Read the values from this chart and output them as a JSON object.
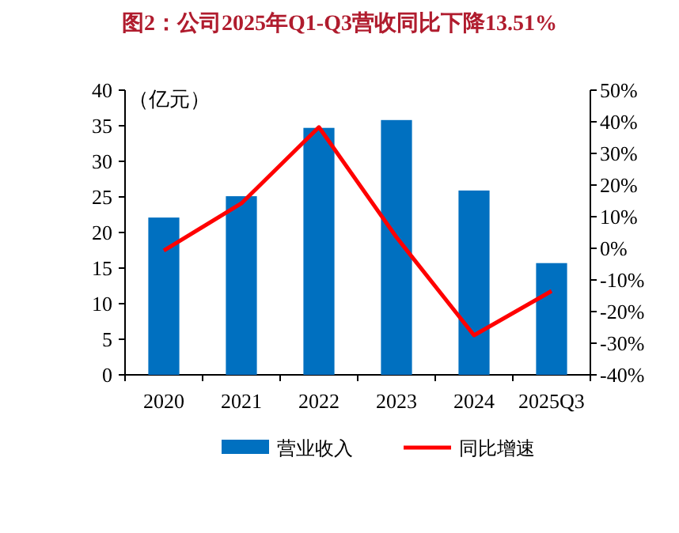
{
  "chart_data": {
    "type": "bar",
    "title": "图2：公司2025年Q1-Q3营收同比下降13.51%",
    "ylabel": "（亿元）",
    "categories": [
      "2020",
      "2021",
      "2022",
      "2023",
      "2024",
      "2025Q3"
    ],
    "series": [
      {
        "name": "营业收入",
        "color": "#0070c0",
        "values": [
          22.1,
          25.1,
          34.7,
          35.8,
          25.9,
          15.7
        ]
      },
      {
        "name": "同比增速",
        "type": "line",
        "axis": "y2",
        "color": "#ff0000",
        "values": [
          -0.7,
          14.2,
          38.3,
          3.5,
          -27.5,
          -13.5
        ]
      }
    ],
    "ylim": [
      0,
      40
    ],
    "yticks": [
      0,
      5,
      10,
      15,
      20,
      25,
      30,
      35,
      40
    ],
    "y2lim": [
      -40,
      50
    ],
    "y2ticks": [
      {
        "value": -40,
        "label": "-40%"
      },
      {
        "value": -30,
        "label": "-30%"
      },
      {
        "value": -20,
        "label": "-20%"
      },
      {
        "value": -10,
        "label": "-10%"
      },
      {
        "value": 0,
        "label": "0%"
      },
      {
        "value": 10,
        "label": "10%"
      },
      {
        "value": 20,
        "label": "20%"
      },
      {
        "value": 30,
        "label": "30%"
      },
      {
        "value": 40,
        "label": "40%"
      },
      {
        "value": 50,
        "label": "50%"
      }
    ],
    "legend": "bottom",
    "grid": false,
    "marker": "none",
    "line_style": "solid"
  }
}
